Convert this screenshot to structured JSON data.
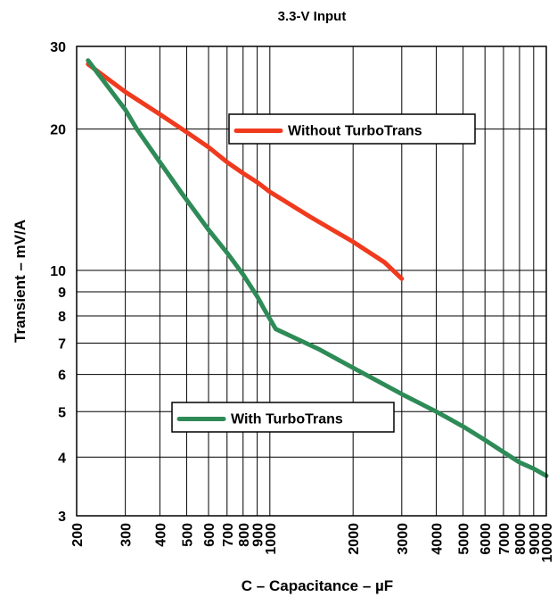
{
  "chart_data": {
    "type": "line",
    "title": "3.3-V Input",
    "xlabel": "C – Capacitance – µF",
    "ylabel": "Transient – mV/A",
    "x_scale": "log",
    "y_scale": "log",
    "xlim": [
      200,
      10000
    ],
    "ylim": [
      3,
      30
    ],
    "grid": true,
    "x_ticks": [
      "200",
      "300",
      "400",
      "500",
      "600",
      "700",
      "800",
      "900",
      "1000",
      "2000",
      "3000",
      "4000",
      "5000",
      "6000",
      "7000",
      "8000",
      "9000",
      "10000"
    ],
    "y_ticks": [
      "3",
      "4",
      "5",
      "6",
      "7",
      "8",
      "9",
      "10",
      "20",
      "30"
    ],
    "series": [
      {
        "name": "Without TurboTrans",
        "color": "#f03a1e",
        "x": [
          220,
          300,
          400,
          500,
          600,
          700,
          800,
          900,
          1000,
          1400,
          2000,
          2600,
          3000
        ],
        "y": [
          27.5,
          24.0,
          21.5,
          19.7,
          18.3,
          17.0,
          16.1,
          15.4,
          14.7,
          13.0,
          11.5,
          10.4,
          9.6
        ]
      },
      {
        "name": "With TurboTrans",
        "color": "#2e8b57",
        "x": [
          220,
          300,
          330,
          400,
          480,
          600,
          700,
          800,
          900,
          950,
          1050,
          1500,
          2000,
          3000,
          4000,
          5000,
          6000,
          7000,
          8000,
          9000,
          10000
        ],
        "y": [
          28.0,
          22.0,
          20.0,
          17.0,
          14.6,
          12.2,
          10.9,
          9.8,
          8.8,
          8.3,
          7.5,
          6.8,
          6.2,
          5.45,
          5.0,
          4.65,
          4.35,
          4.1,
          3.9,
          3.78,
          3.65
        ]
      }
    ],
    "legend": [
      {
        "label": "Without TurboTrans",
        "placement": "upper-right"
      },
      {
        "label": "With TurboTrans",
        "placement": "center"
      }
    ]
  }
}
